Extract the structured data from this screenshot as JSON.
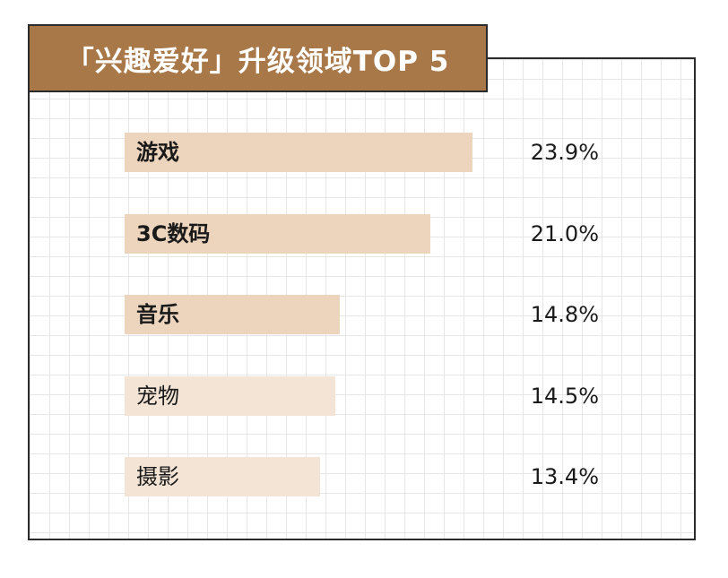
{
  "title": "「兴趣爱好」升级领域TOP 5",
  "colors": {
    "title_bg": "#a87848",
    "bar_strong": "#edd5bd",
    "bar_light": "#f3e4d5"
  },
  "chart_data": {
    "type": "bar",
    "orientation": "horizontal",
    "title": "「兴趣爱好」升级领域TOP 5",
    "unit": "%",
    "categories": [
      "游戏",
      "3C数码",
      "音乐",
      "宠物",
      "摄影"
    ],
    "values": [
      23.9,
      21.0,
      14.8,
      14.5,
      13.4
    ],
    "value_labels": [
      "23.9%",
      "21.0%",
      "14.8%",
      "14.5%",
      "13.4%"
    ],
    "highlighted": [
      true,
      true,
      true,
      false,
      false
    ],
    "xlim": [
      0,
      23.9
    ],
    "grid": true,
    "legend": "none"
  }
}
